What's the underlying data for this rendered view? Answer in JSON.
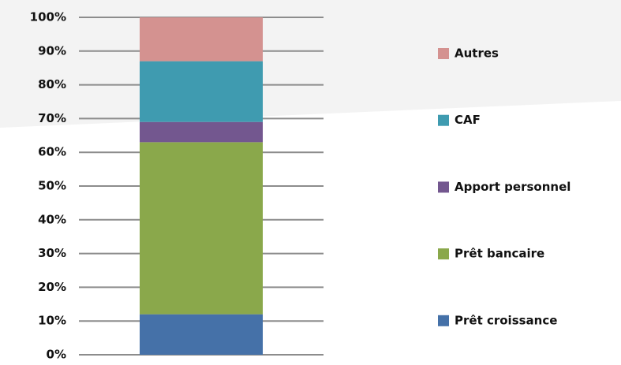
{
  "chart_data": {
    "type": "stacked_bar",
    "categories": [
      null
    ],
    "series": [
      {
        "name": "Prêt croissance",
        "color": "#4571a8",
        "values": [
          12
        ]
      },
      {
        "name": "Prêt bancaire",
        "color": "#8aa84b",
        "values": [
          51
        ]
      },
      {
        "name": "Apport personnel",
        "color": "#73578f",
        "values": [
          6
        ]
      },
      {
        "name": "CAF",
        "color": "#3f9bb0",
        "values": [
          18
        ]
      },
      {
        "name": "Autres",
        "color": "#d49290",
        "values": [
          13
        ]
      }
    ],
    "ylim": [
      0,
      100
    ],
    "yticks": [
      {
        "value": 0,
        "label": "0%"
      },
      {
        "value": 10,
        "label": "10%"
      },
      {
        "value": 20,
        "label": "20%"
      },
      {
        "value": 30,
        "label": "30%"
      },
      {
        "value": 40,
        "label": "40%"
      },
      {
        "value": 50,
        "label": "50%"
      },
      {
        "value": 60,
        "label": "60%"
      },
      {
        "value": 70,
        "label": "70%"
      },
      {
        "value": 80,
        "label": "80%"
      },
      {
        "value": 90,
        "label": "90%"
      },
      {
        "value": 100,
        "label": "100%"
      }
    ],
    "grid": true,
    "legend": "right"
  }
}
